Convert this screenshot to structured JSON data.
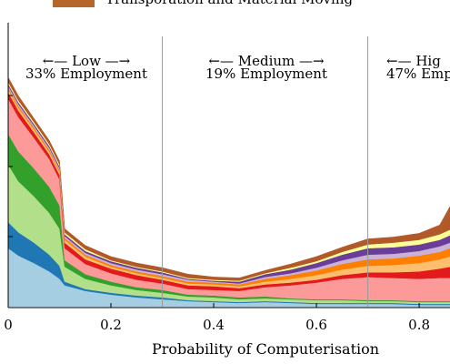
{
  "chart_data": {
    "type": "area",
    "xlabel": "Probability of Computerisation",
    "xlim": [
      0,
      0.86
    ],
    "x_ticks": [
      0,
      0.2,
      0.4,
      0.6,
      0.8
    ],
    "legend": {
      "placement": "top",
      "entries": [
        {
          "name": "Transporation and Material Moving",
          "color": "#b5662a"
        }
      ]
    },
    "regions": [
      {
        "label": "←— Low —→",
        "sub": "33% Employment"
      },
      {
        "label": "←— Medium —→",
        "sub": "19% Employment"
      },
      {
        "label": "←— Hig",
        "sub": "47% Emp"
      }
    ],
    "dividers": [
      0.3,
      0.7
    ],
    "x": [
      0,
      0.02,
      0.05,
      0.08,
      0.1,
      0.11,
      0.15,
      0.2,
      0.25,
      0.3,
      0.35,
      0.4,
      0.45,
      0.5,
      0.55,
      0.6,
      0.65,
      0.7,
      0.75,
      0.8,
      0.84,
      0.86
    ],
    "series": [
      {
        "color": "#a6cee3",
        "values": [
          63,
          55,
          47,
          38,
          30,
          23,
          17,
          13,
          10,
          8,
          6,
          5,
          4,
          5,
          4,
          3,
          3,
          3,
          3,
          2,
          2,
          2
        ]
      },
      {
        "color": "#1f78b4",
        "values": [
          28,
          25,
          22,
          18,
          14,
          4,
          2,
          2,
          2,
          2,
          1,
          1,
          1,
          1,
          1,
          1,
          1,
          1,
          1,
          1,
          1,
          1
        ]
      },
      {
        "color": "#b2df8a",
        "values": [
          62,
          55,
          50,
          45,
          40,
          16,
          11,
          8,
          6,
          5,
          4,
          4,
          3,
          3,
          3,
          3,
          3,
          2,
          2,
          2,
          2,
          2
        ]
      },
      {
        "color": "#33a02c",
        "values": [
          33,
          32,
          30,
          28,
          25,
          7,
          5,
          4,
          3,
          3,
          2,
          2,
          2,
          2,
          1,
          1,
          1,
          1,
          1,
          1,
          1,
          1
        ]
      },
      {
        "color": "#fb9a99",
        "values": [
          38,
          37,
          33,
          30,
          28,
          13,
          11,
          9,
          8,
          7,
          6,
          6,
          7,
          10,
          14,
          18,
          22,
          25,
          24,
          24,
          25,
          25
        ]
      },
      {
        "color": "#e31a1c",
        "values": [
          7,
          7,
          6,
          5,
          5,
          6,
          5,
          5,
          5,
          4,
          4,
          4,
          3,
          3,
          3,
          3,
          4,
          5,
          6,
          8,
          10,
          12
        ]
      },
      {
        "color": "#fdbf6f",
        "values": [
          3,
          3,
          3,
          3,
          3,
          3,
          3,
          2,
          2,
          2,
          2,
          2,
          2,
          3,
          4,
          5,
          6,
          7,
          8,
          9,
          10,
          11
        ]
      },
      {
        "color": "#ff7f00",
        "values": [
          2,
          2,
          2,
          2,
          2,
          2,
          2,
          2,
          2,
          2,
          2,
          2,
          2,
          3,
          4,
          5,
          6,
          7,
          7,
          8,
          8,
          9
        ]
      },
      {
        "color": "#cab2d6",
        "values": [
          2,
          2,
          2,
          2,
          2,
          2,
          2,
          2,
          2,
          2,
          2,
          1,
          1,
          2,
          2,
          3,
          4,
          5,
          5,
          5,
          6,
          6
        ]
      },
      {
        "color": "#6a3d9a",
        "values": [
          2,
          2,
          2,
          2,
          2,
          2,
          2,
          2,
          2,
          2,
          1,
          1,
          2,
          3,
          4,
          5,
          6,
          7,
          7,
          7,
          7,
          8
        ]
      },
      {
        "color": "#ffff99",
        "values": [
          2,
          2,
          2,
          2,
          2,
          2,
          2,
          1,
          1,
          1,
          1,
          1,
          1,
          1,
          2,
          2,
          3,
          4,
          5,
          5,
          6,
          6
        ]
      },
      {
        "color": "#b15928",
        "values": [
          5,
          5,
          4,
          4,
          4,
          4,
          4,
          4,
          4,
          4,
          4,
          3,
          3,
          3,
          4,
          5,
          5,
          6,
          6,
          7,
          10,
          25
        ]
      }
    ]
  }
}
